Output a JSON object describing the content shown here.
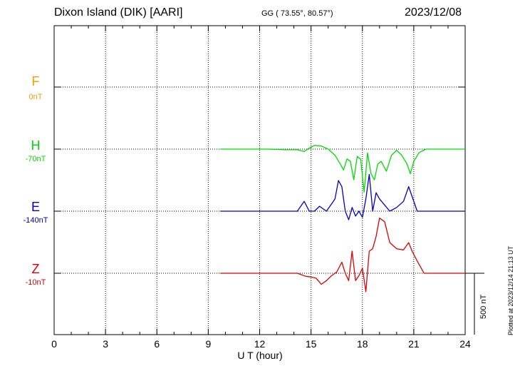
{
  "header": {
    "station": "Dixon Island (DIK)  [AARI]",
    "coords": "GG ( 73.55°,  80.57°)",
    "date": "2023/12/08"
  },
  "channels": [
    {
      "name": "F",
      "offset": "0nT",
      "color": "#f0a000"
    },
    {
      "name": "H",
      "offset": "-70nT",
      "color": "#00dd00"
    },
    {
      "name": "E",
      "offset": "-140nT",
      "color": "#0000cc"
    },
    {
      "name": "Z",
      "offset": "-10nT",
      "color": "#dd0000"
    }
  ],
  "footer": {
    "xlabel": "U T (hour)",
    "plotted": "Plotted at 2023/12/14 21:13 UT",
    "scale": "500 nT"
  },
  "chart_data": {
    "type": "line",
    "xlabel": "U T (hour)",
    "xlim": [
      0,
      24
    ],
    "xticks": [
      "0",
      "3",
      "6",
      "9",
      "12",
      "15",
      "18",
      "21",
      "24"
    ],
    "scale_nT": 500,
    "grid": true,
    "series": [
      {
        "name": "H",
        "color": "#00dd00",
        "x": [
          9.7,
          10.5,
          11.5,
          12.5,
          13.5,
          14.2,
          14.6,
          14.8,
          15.2,
          15.6,
          16.0,
          16.4,
          16.7,
          16.9,
          17.1,
          17.3,
          17.5,
          17.7,
          17.9,
          18.1,
          18.3,
          18.5,
          18.7,
          18.9,
          19.1,
          19.4,
          19.7,
          20.0,
          20.3,
          20.6,
          20.8,
          21.0,
          21.3,
          21.7,
          22.3,
          23.0,
          24.0
        ],
        "y": [
          0,
          0,
          0,
          0,
          -5,
          -5,
          -20,
          0,
          30,
          25,
          0,
          -50,
          -120,
          -170,
          -80,
          -100,
          -250,
          -60,
          -80,
          -350,
          -30,
          -200,
          -250,
          -120,
          -100,
          -180,
          -50,
          -10,
          -50,
          -120,
          -200,
          -100,
          -30,
          0,
          0,
          0,
          0
        ]
      },
      {
        "name": "E",
        "color": "#0000cc",
        "x": [
          9.7,
          10.5,
          11.5,
          12.5,
          13.5,
          14.2,
          14.6,
          14.9,
          15.2,
          15.5,
          15.9,
          16.2,
          16.4,
          16.6,
          16.8,
          17.0,
          17.2,
          17.4,
          17.6,
          17.8,
          18.0,
          18.2,
          18.4,
          18.6,
          18.8,
          19.0,
          19.3,
          19.6,
          20.0,
          20.4,
          20.7,
          20.9,
          21.2,
          21.6,
          22.3,
          23.0,
          24.0
        ],
        "y": [
          0,
          0,
          0,
          0,
          0,
          0,
          80,
          0,
          0,
          40,
          0,
          60,
          100,
          250,
          200,
          0,
          -70,
          30,
          -40,
          0,
          -50,
          100,
          300,
          0,
          150,
          100,
          50,
          0,
          30,
          80,
          200,
          120,
          0,
          0,
          0,
          0,
          0
        ]
      },
      {
        "name": "Z",
        "color": "#dd0000",
        "x": [
          9.7,
          10.5,
          11.5,
          12.5,
          13.5,
          14.2,
          14.7,
          15.0,
          15.3,
          15.6,
          15.9,
          16.2,
          16.5,
          16.8,
          17.0,
          17.2,
          17.4,
          17.6,
          17.8,
          18.0,
          18.2,
          18.4,
          18.6,
          18.8,
          19.0,
          19.3,
          19.6,
          20.0,
          20.4,
          20.7,
          20.9,
          21.2,
          21.6,
          22.3,
          23.0,
          24.0
        ],
        "y": [
          0,
          0,
          0,
          0,
          0,
          0,
          -25,
          -30,
          -40,
          -90,
          -60,
          -20,
          10,
          90,
          0,
          -60,
          180,
          -60,
          -20,
          40,
          -150,
          180,
          200,
          300,
          450,
          420,
          250,
          200,
          190,
          250,
          180,
          100,
          0,
          0,
          0,
          0
        ]
      }
    ]
  }
}
